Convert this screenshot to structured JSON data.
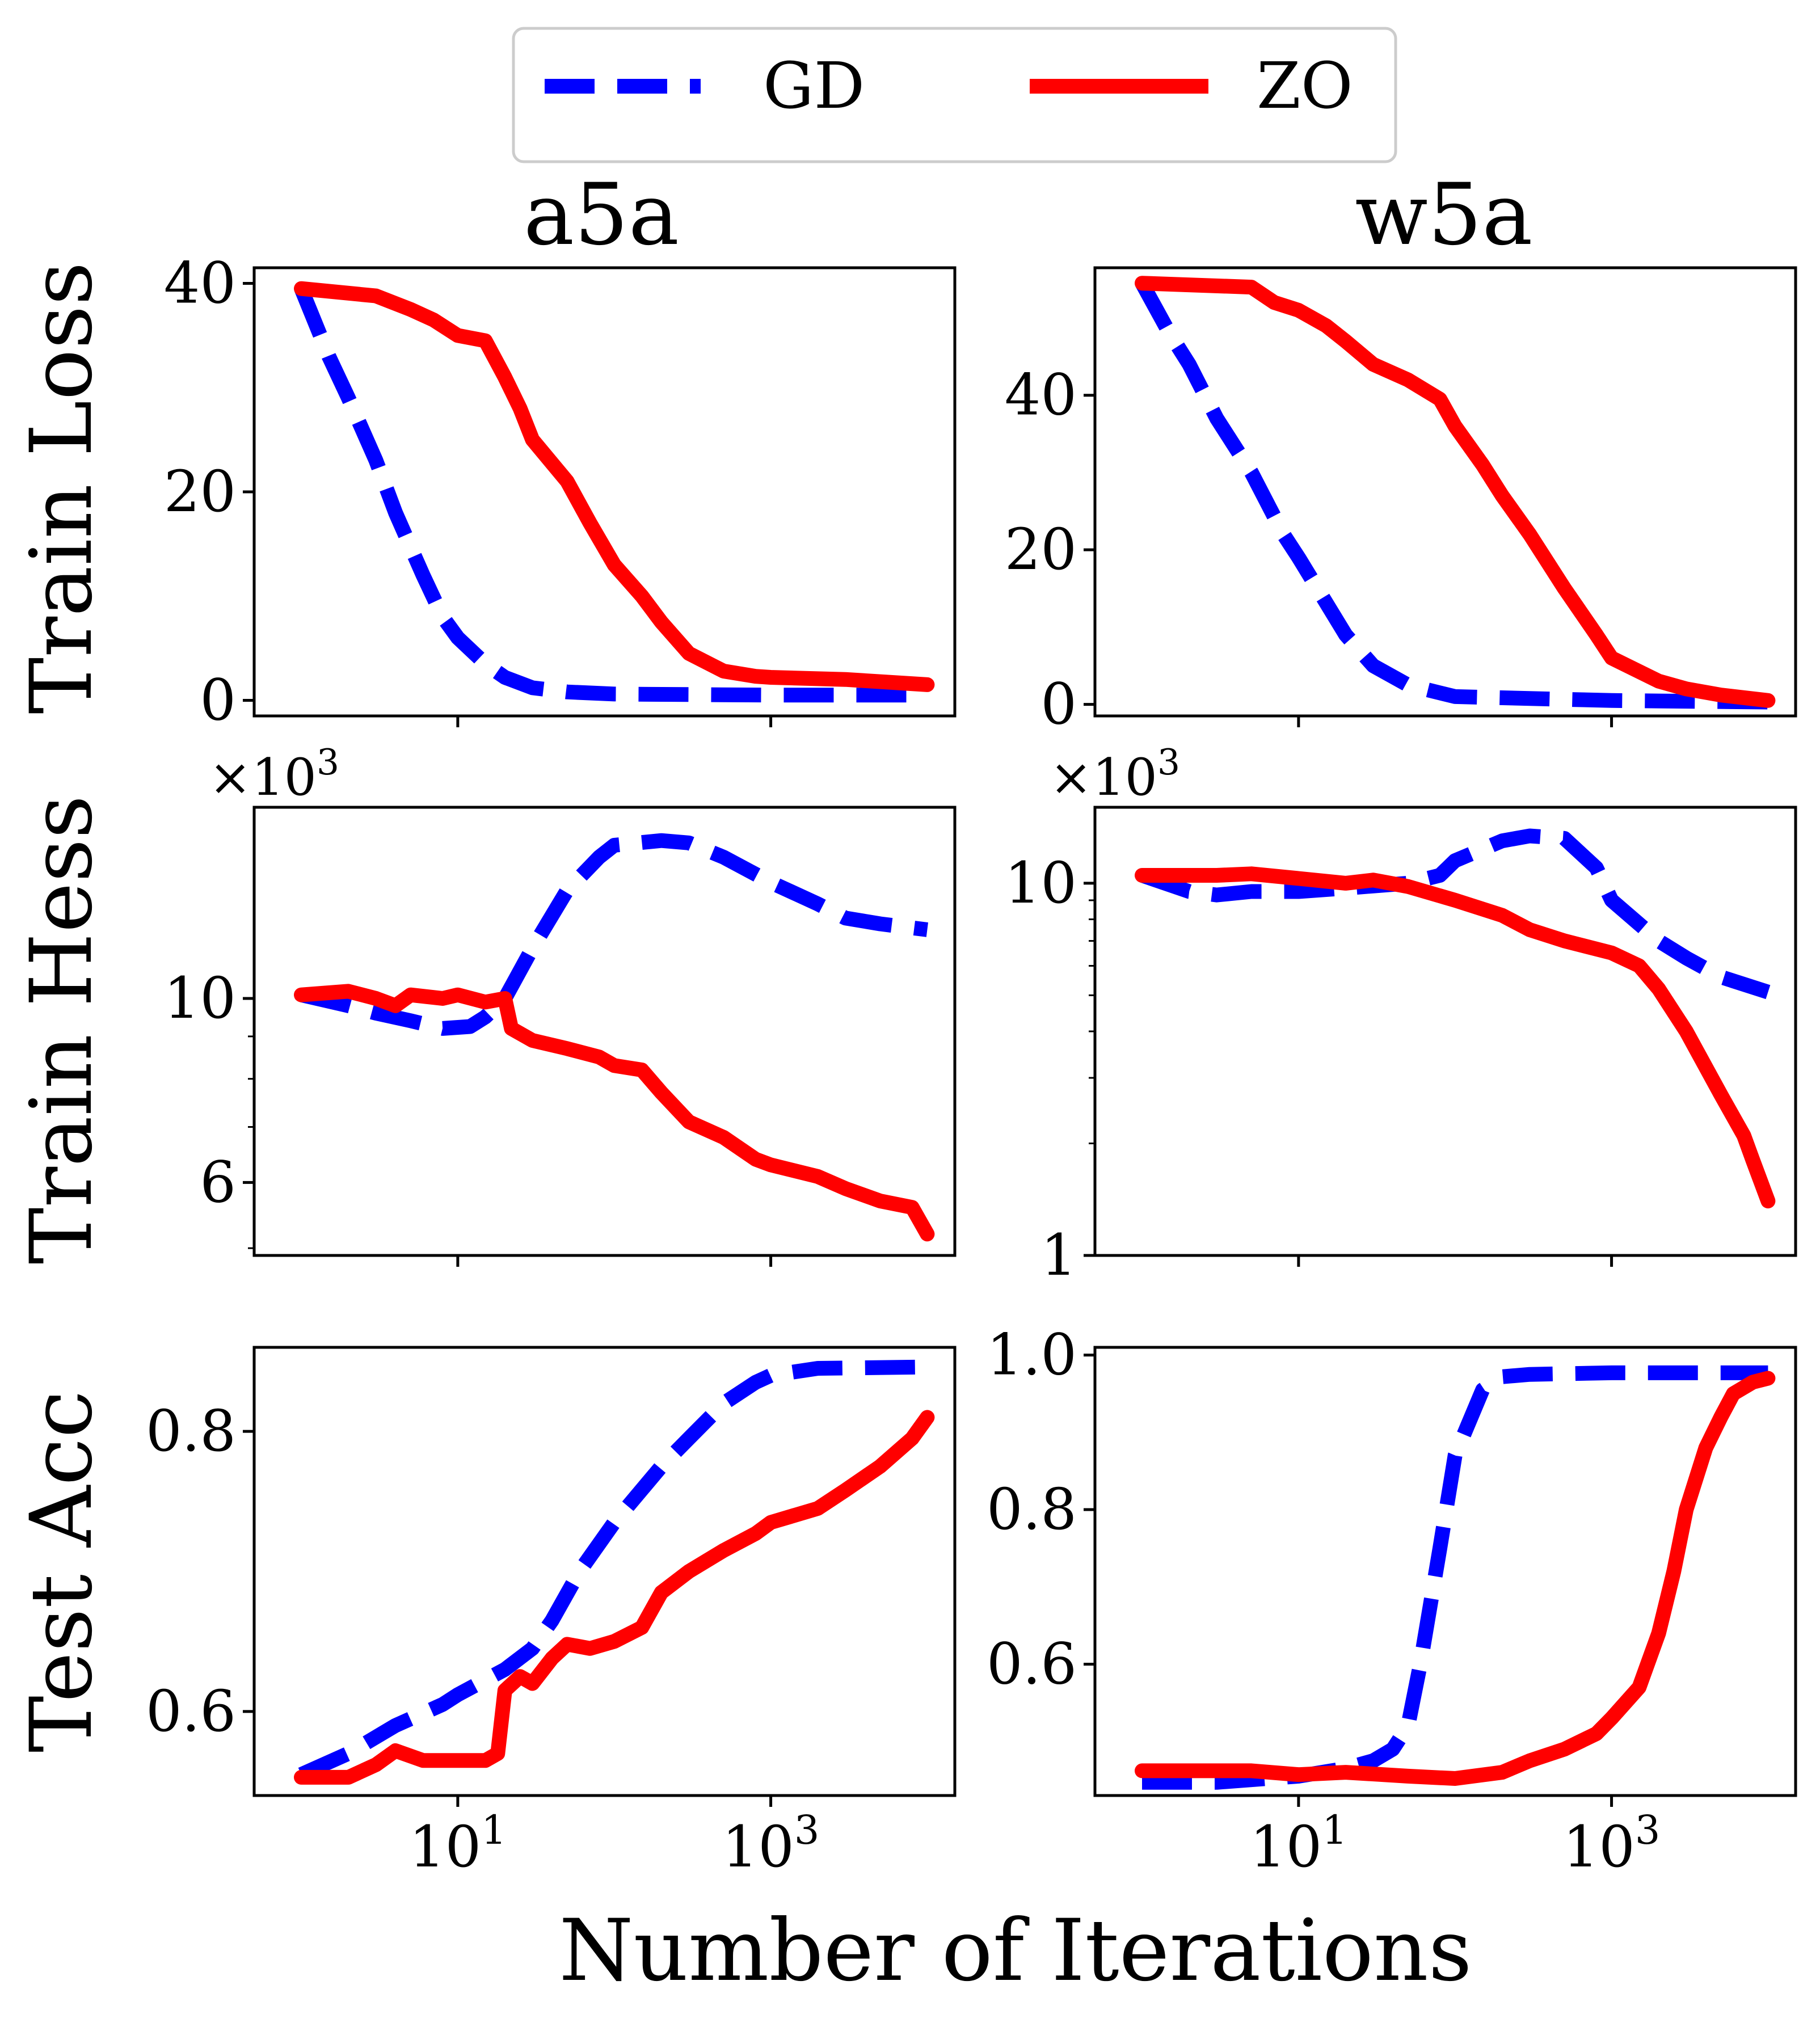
{
  "legend": {
    "items": [
      {
        "name": "GD",
        "color": "#0000ff",
        "style": "dashed"
      },
      {
        "name": "ZO",
        "color": "#ff0000",
        "style": "solid"
      }
    ]
  },
  "columns": [
    "a5a",
    "w5a"
  ],
  "row_labels": [
    "Train Loss",
    "Train Hess",
    "Test Acc"
  ],
  "xlabel": "Number of Iterations",
  "x_scale": "log",
  "x_ticks": [
    {
      "value": 10,
      "label": "10",
      "exp": "1"
    },
    {
      "value": 1000,
      "label": "10",
      "exp": "3"
    }
  ],
  "offset_label": {
    "text": "×10",
    "exp": "3"
  },
  "colors": {
    "gd": "#0000ff",
    "zo": "#ff0000",
    "axis": "#000000"
  },
  "chart_data": [
    {
      "type": "line",
      "dataset": "a5a",
      "metric": "Train Loss",
      "yscale": "linear",
      "xlim": [
        0.5,
        15000
      ],
      "ylim": [
        -1.5,
        41.5
      ],
      "yticks": [
        {
          "value": 0,
          "label": "0"
        },
        {
          "value": 20,
          "label": "20"
        },
        {
          "value": 40,
          "label": "40"
        }
      ],
      "series": [
        {
          "name": "GD",
          "points": [
            [
              1,
              39.5
            ],
            [
              1.5,
              33
            ],
            [
              2,
              29
            ],
            [
              3,
              23
            ],
            [
              4,
              18
            ],
            [
              6,
              12
            ],
            [
              8,
              8
            ],
            [
              10,
              6
            ],
            [
              15,
              3.5
            ],
            [
              20,
              2.2
            ],
            [
              30,
              1.2
            ],
            [
              50,
              0.8
            ],
            [
              100,
              0.6
            ],
            [
              1000,
              0.5
            ],
            [
              10000,
              0.5
            ]
          ]
        },
        {
          "name": "ZO",
          "points": [
            [
              1,
              39.5
            ],
            [
              3,
              38.8
            ],
            [
              5,
              37.5
            ],
            [
              7,
              36.5
            ],
            [
              10,
              35
            ],
            [
              15,
              34.5
            ],
            [
              20,
              31
            ],
            [
              25,
              28
            ],
            [
              30,
              25
            ],
            [
              50,
              21
            ],
            [
              70,
              17
            ],
            [
              100,
              13
            ],
            [
              150,
              10
            ],
            [
              200,
              7.5
            ],
            [
              300,
              4.5
            ],
            [
              500,
              2.8
            ],
            [
              800,
              2.3
            ],
            [
              1000,
              2.2
            ],
            [
              3000,
              2.0
            ],
            [
              10000,
              1.5
            ]
          ]
        }
      ]
    },
    {
      "type": "line",
      "dataset": "w5a",
      "metric": "Train Loss",
      "yscale": "linear",
      "xlim": [
        0.5,
        15000
      ],
      "ylim": [
        -1.5,
        56.5
      ],
      "yticks": [
        {
          "value": 0,
          "label": "0"
        },
        {
          "value": 20,
          "label": "20"
        },
        {
          "value": 40,
          "label": "40"
        }
      ],
      "series": [
        {
          "name": "GD",
          "points": [
            [
              1,
              54.5
            ],
            [
              1.5,
              48
            ],
            [
              2,
              44
            ],
            [
              3,
              37
            ],
            [
              5,
              30
            ],
            [
              8,
              22
            ],
            [
              10,
              19
            ],
            [
              20,
              9
            ],
            [
              30,
              5
            ],
            [
              50,
              2.5
            ],
            [
              100,
              1
            ],
            [
              1000,
              0.5
            ],
            [
              10000,
              0.3
            ]
          ]
        },
        {
          "name": "ZO",
          "points": [
            [
              1,
              54.5
            ],
            [
              5,
              54
            ],
            [
              7,
              52
            ],
            [
              10,
              51
            ],
            [
              15,
              49
            ],
            [
              20,
              47
            ],
            [
              30,
              44
            ],
            [
              50,
              42
            ],
            [
              80,
              39.5
            ],
            [
              100,
              36
            ],
            [
              150,
              31
            ],
            [
              200,
              27
            ],
            [
              300,
              22
            ],
            [
              500,
              15
            ],
            [
              800,
              9
            ],
            [
              1000,
              6
            ],
            [
              2000,
              3
            ],
            [
              3000,
              2
            ],
            [
              5000,
              1.2
            ],
            [
              10000,
              0.5
            ]
          ]
        }
      ]
    },
    {
      "type": "line",
      "dataset": "a5a",
      "metric": "Train Hess",
      "yscale": "log",
      "offset": "×10^3",
      "xlim": [
        0.5,
        15000
      ],
      "ylim": [
        4.9,
        17
      ],
      "yticks": [
        {
          "value": 6,
          "label": "6"
        },
        {
          "value": 10,
          "label": "10"
        }
      ],
      "minor_yticks": [
        5,
        7,
        8,
        9
      ],
      "series": [
        {
          "name": "GD",
          "points": [
            [
              1,
              10.1
            ],
            [
              2,
              9.8
            ],
            [
              3,
              9.6
            ],
            [
              5,
              9.4
            ],
            [
              8,
              9.2
            ],
            [
              12,
              9.25
            ],
            [
              15,
              9.5
            ],
            [
              20,
              10
            ],
            [
              30,
              11.5
            ],
            [
              50,
              13.5
            ],
            [
              80,
              14.8
            ],
            [
              100,
              15.3
            ],
            [
              200,
              15.5
            ],
            [
              300,
              15.4
            ],
            [
              500,
              14.8
            ],
            [
              1000,
              13.8
            ],
            [
              2000,
              13
            ],
            [
              3000,
              12.5
            ],
            [
              5000,
              12.3
            ],
            [
              10000,
              12.1
            ]
          ]
        },
        {
          "name": "ZO",
          "points": [
            [
              1,
              10.1
            ],
            [
              2,
              10.2
            ],
            [
              3,
              10
            ],
            [
              4,
              9.8
            ],
            [
              5,
              10.1
            ],
            [
              8,
              10
            ],
            [
              10,
              10.1
            ],
            [
              15,
              9.9
            ],
            [
              20,
              10
            ],
            [
              22,
              9.2
            ],
            [
              30,
              8.9
            ],
            [
              50,
              8.7
            ],
            [
              80,
              8.5
            ],
            [
              100,
              8.3
            ],
            [
              150,
              8.2
            ],
            [
              200,
              7.7
            ],
            [
              300,
              7.1
            ],
            [
              500,
              6.8
            ],
            [
              800,
              6.4
            ],
            [
              1000,
              6.3
            ],
            [
              2000,
              6.1
            ],
            [
              3000,
              5.9
            ],
            [
              5000,
              5.7
            ],
            [
              8000,
              5.6
            ],
            [
              10000,
              5.2
            ]
          ]
        }
      ]
    },
    {
      "type": "line",
      "dataset": "w5a",
      "metric": "Train Hess",
      "yscale": "log",
      "offset": "×10^3",
      "xlim": [
        0.5,
        15000
      ],
      "ylim": [
        1,
        16
      ],
      "yticks": [
        {
          "value": 1,
          "label": "1"
        },
        {
          "value": 10,
          "label": "10"
        }
      ],
      "minor_yticks": [
        2,
        3,
        4,
        5,
        6,
        7,
        8,
        9
      ],
      "series": [
        {
          "name": "GD",
          "points": [
            [
              1,
              10.5
            ],
            [
              2,
              9.5
            ],
            [
              3,
              9.3
            ],
            [
              5,
              9.5
            ],
            [
              10,
              9.5
            ],
            [
              20,
              9.7
            ],
            [
              50,
              10
            ],
            [
              80,
              10.5
            ],
            [
              100,
              11.5
            ],
            [
              200,
              13
            ],
            [
              300,
              13.4
            ],
            [
              500,
              13.2
            ],
            [
              800,
              11
            ],
            [
              1000,
              9
            ],
            [
              2000,
              7
            ],
            [
              3000,
              6.3
            ],
            [
              5000,
              5.6
            ],
            [
              10000,
              5.1
            ]
          ]
        },
        {
          "name": "ZO",
          "points": [
            [
              1,
              10.5
            ],
            [
              3,
              10.5
            ],
            [
              5,
              10.6
            ],
            [
              10,
              10.3
            ],
            [
              20,
              10
            ],
            [
              30,
              10.2
            ],
            [
              50,
              9.8
            ],
            [
              100,
              9
            ],
            [
              200,
              8.2
            ],
            [
              300,
              7.5
            ],
            [
              500,
              7
            ],
            [
              1000,
              6.5
            ],
            [
              1500,
              6
            ],
            [
              2000,
              5.2
            ],
            [
              3000,
              4
            ],
            [
              5000,
              2.7
            ],
            [
              7000,
              2.1
            ],
            [
              8000,
              1.8
            ],
            [
              10000,
              1.4
            ]
          ]
        }
      ]
    },
    {
      "type": "line",
      "dataset": "a5a",
      "metric": "Test Acc",
      "yscale": "linear",
      "xlim": [
        0.5,
        15000
      ],
      "ylim": [
        0.54,
        0.86
      ],
      "yticks": [
        {
          "value": 0.6,
          "label": "0.6"
        },
        {
          "value": 0.8,
          "label": "0.8"
        }
      ],
      "series": [
        {
          "name": "GD",
          "points": [
            [
              1,
              0.555
            ],
            [
              2,
              0.57
            ],
            [
              4,
              0.59
            ],
            [
              8,
              0.605
            ],
            [
              10,
              0.612
            ],
            [
              20,
              0.63
            ],
            [
              30,
              0.645
            ],
            [
              40,
              0.665
            ],
            [
              60,
              0.7
            ],
            [
              100,
              0.735
            ],
            [
              200,
              0.775
            ],
            [
              300,
              0.795
            ],
            [
              500,
              0.82
            ],
            [
              800,
              0.835
            ],
            [
              1000,
              0.84
            ],
            [
              2000,
              0.845
            ],
            [
              10000,
              0.846
            ]
          ]
        },
        {
          "name": "ZO",
          "points": [
            [
              1,
              0.553
            ],
            [
              2,
              0.553
            ],
            [
              3,
              0.562
            ],
            [
              4,
              0.572
            ],
            [
              6,
              0.565
            ],
            [
              10,
              0.565
            ],
            [
              15,
              0.565
            ],
            [
              18,
              0.57
            ],
            [
              20,
              0.615
            ],
            [
              25,
              0.625
            ],
            [
              30,
              0.62
            ],
            [
              40,
              0.638
            ],
            [
              50,
              0.648
            ],
            [
              70,
              0.645
            ],
            [
              100,
              0.65
            ],
            [
              150,
              0.66
            ],
            [
              200,
              0.685
            ],
            [
              300,
              0.7
            ],
            [
              500,
              0.715
            ],
            [
              800,
              0.727
            ],
            [
              1000,
              0.735
            ],
            [
              2000,
              0.745
            ],
            [
              3000,
              0.758
            ],
            [
              5000,
              0.775
            ],
            [
              8000,
              0.795
            ],
            [
              10000,
              0.81
            ]
          ]
        }
      ]
    },
    {
      "type": "line",
      "dataset": "w5a",
      "metric": "Test Acc",
      "yscale": "linear",
      "xlim": [
        0.5,
        15000
      ],
      "ylim": [
        0.43,
        1.01
      ],
      "yticks": [
        {
          "value": 0.6,
          "label": "0.6"
        },
        {
          "value": 0.8,
          "label": "0.8"
        },
        {
          "value": 1.0,
          "label": "1.0"
        }
      ],
      "series": [
        {
          "name": "GD",
          "points": [
            [
              1,
              0.447
            ],
            [
              3,
              0.447
            ],
            [
              10,
              0.455
            ],
            [
              20,
              0.465
            ],
            [
              30,
              0.475
            ],
            [
              40,
              0.49
            ],
            [
              50,
              0.52
            ],
            [
              60,
              0.6
            ],
            [
              80,
              0.75
            ],
            [
              100,
              0.87
            ],
            [
              150,
              0.955
            ],
            [
              200,
              0.972
            ],
            [
              300,
              0.975
            ],
            [
              1000,
              0.977
            ],
            [
              10000,
              0.977
            ]
          ]
        },
        {
          "name": "ZO",
          "points": [
            [
              1,
              0.462
            ],
            [
              5,
              0.462
            ],
            [
              10,
              0.457
            ],
            [
              20,
              0.46
            ],
            [
              50,
              0.455
            ],
            [
              100,
              0.452
            ],
            [
              200,
              0.46
            ],
            [
              300,
              0.475
            ],
            [
              500,
              0.49
            ],
            [
              800,
              0.51
            ],
            [
              1000,
              0.53
            ],
            [
              1500,
              0.57
            ],
            [
              2000,
              0.64
            ],
            [
              2500,
              0.72
            ],
            [
              3000,
              0.8
            ],
            [
              4000,
              0.88
            ],
            [
              5000,
              0.92
            ],
            [
              6000,
              0.95
            ],
            [
              8000,
              0.965
            ],
            [
              10000,
              0.97
            ]
          ]
        }
      ]
    }
  ]
}
